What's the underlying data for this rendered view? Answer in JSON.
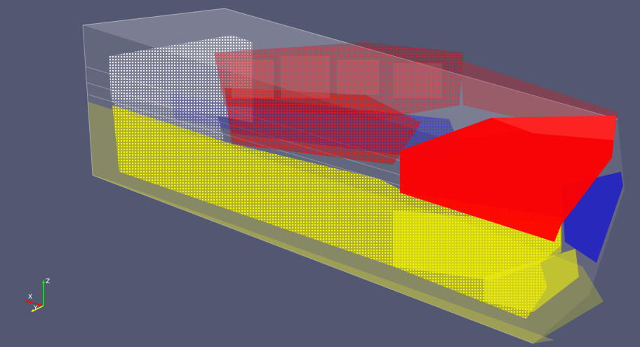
{
  "viewport": {
    "background_color": "#525772"
  },
  "scene": {
    "regions": [
      {
        "name": "outer-bounding-box",
        "color": "#c8c8c8"
      },
      {
        "name": "white-particle-cluster",
        "color": "#ffffff"
      },
      {
        "name": "yellow-particle-region",
        "color": "#ffff00"
      },
      {
        "name": "red-particle-region",
        "color": "#ff0000"
      },
      {
        "name": "blue-particle-region",
        "color": "#1010d0"
      }
    ]
  },
  "orientation_axes": {
    "z_label": "Z",
    "x_label": "X",
    "y_label": "Y",
    "z_color": "#00ff00",
    "x_color": "#ff0000",
    "y_color": "#ffff00"
  }
}
